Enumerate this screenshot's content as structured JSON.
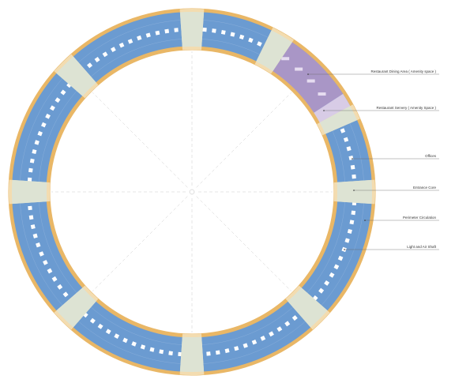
{
  "labels": [
    {
      "text": "Restaurant Dining Area ( Amenity space )"
    },
    {
      "text": "Restaurant Servery ( Amenity Space )"
    },
    {
      "text": "Offices"
    },
    {
      "text": "Entrance Core"
    },
    {
      "text": "Perimeter Circulation"
    },
    {
      "text": "Light and Air Shaft"
    }
  ]
}
